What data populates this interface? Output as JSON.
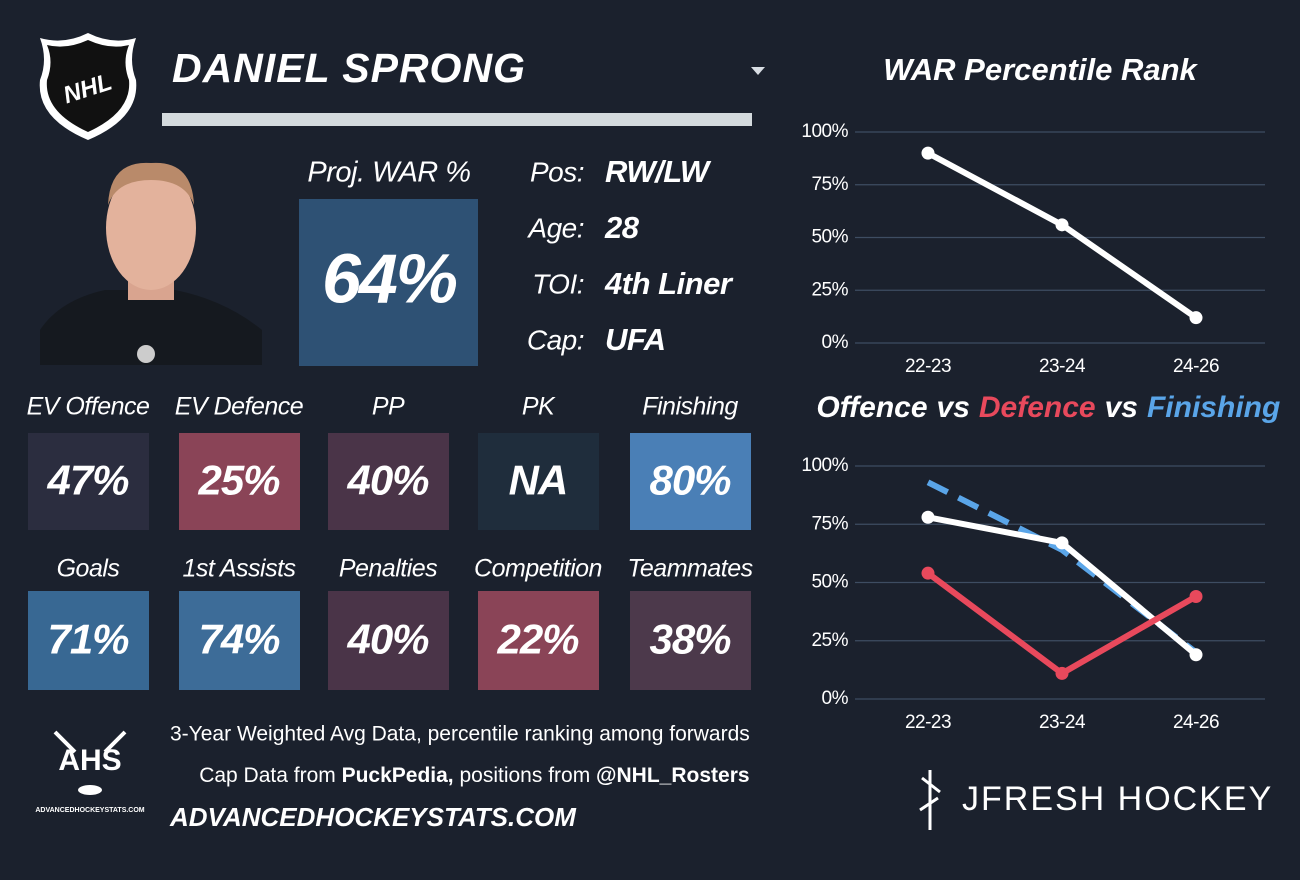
{
  "header": {
    "name": "DANIEL SPRONG",
    "logo": "NHL"
  },
  "projection": {
    "label": "Proj. WAR %",
    "value": "64%"
  },
  "info": [
    {
      "label": "Pos:",
      "value": "RW/LW"
    },
    {
      "label": "Age:",
      "value": "28"
    },
    {
      "label": "TOI:",
      "value": "4th Liner"
    },
    {
      "label": "Cap:",
      "value": "UFA"
    }
  ],
  "stats": [
    [
      {
        "label": "EV Offence",
        "value": "47%",
        "color": "#2b2d3f"
      },
      {
        "label": "EV Defence",
        "value": "25%",
        "color": "#8a4457"
      },
      {
        "label": "PP",
        "value": "40%",
        "color": "#4a3448"
      },
      {
        "label": "PK",
        "value": "NA",
        "color": "#1f2d3c"
      },
      {
        "label": "Finishing",
        "value": "80%",
        "color": "#4a7fb6"
      }
    ],
    [
      {
        "label": "Goals",
        "value": "71%",
        "color": "#386893"
      },
      {
        "label": "1st Assists",
        "value": "74%",
        "color": "#3d6c98"
      },
      {
        "label": "Penalties",
        "value": "40%",
        "color": "#4a3448"
      },
      {
        "label": "Competition",
        "value": "22%",
        "color": "#8a4457"
      },
      {
        "label": "Teammates",
        "value": "38%",
        "color": "#4c394b"
      }
    ]
  ],
  "footer": {
    "logo": "AHS",
    "logo_caption": "ADVANCEDHOCKEYSTATS.COM",
    "note": "3-Year Weighted Avg Data, percentile ranking among forwards",
    "credits": [
      "Cap Data from ",
      "PuckPedia,",
      " positions from ",
      "@NHL_Rosters"
    ],
    "url": "ADVANCEDHOCKEYSTATS.COM",
    "brand": "JFRESH HOCKEY"
  },
  "chart_data": [
    {
      "type": "line",
      "title": "WAR Percentile Rank",
      "categories": [
        "22-23",
        "23-24",
        "24-26"
      ],
      "values": [
        90,
        56,
        12
      ],
      "color": "#ffffff",
      "ylim": [
        0,
        100
      ],
      "yticks": [
        {
          "value": 0,
          "label": "0%"
        },
        {
          "value": 25,
          "label": "25%"
        },
        {
          "value": 50,
          "label": "50%"
        },
        {
          "value": 75,
          "label": "75%"
        },
        {
          "value": 100,
          "label": "100%"
        }
      ],
      "grid": true
    },
    {
      "type": "line",
      "title_joiner": "vs",
      "categories": [
        "22-23",
        "23-24",
        "24-26"
      ],
      "series": [
        {
          "name": "Offence",
          "color": "#ffffff",
          "values": [
            78,
            67,
            19
          ]
        },
        {
          "name": "Defence",
          "color": "#e8495c",
          "values": [
            54,
            11,
            44
          ]
        },
        {
          "name": "Finishing",
          "color": "#5aa5e8",
          "values": [
            93,
            64,
            20
          ],
          "dashed": true,
          "markers": false
        }
      ],
      "ylim": [
        0,
        100
      ],
      "yticks": [
        {
          "value": 0,
          "label": "0%"
        },
        {
          "value": 25,
          "label": "25%"
        },
        {
          "value": 50,
          "label": "50%"
        },
        {
          "value": 75,
          "label": "75%"
        },
        {
          "value": 100,
          "label": "100%"
        }
      ],
      "grid": true
    }
  ]
}
